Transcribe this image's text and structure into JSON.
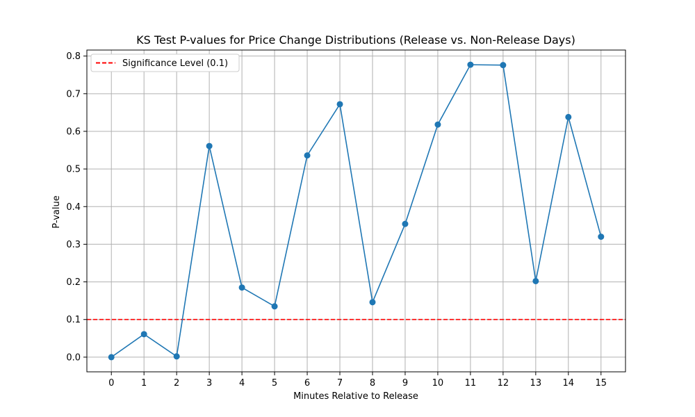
{
  "chart_data": {
    "type": "line",
    "title": "KS Test P-values for Price Change Distributions (Release vs. Non-Release Days)",
    "xlabel": "Minutes Relative to Release",
    "ylabel": "P-value",
    "x": [
      0,
      1,
      2,
      3,
      4,
      5,
      6,
      7,
      8,
      9,
      10,
      11,
      12,
      13,
      14,
      15
    ],
    "series": [
      {
        "values": [
          0.0,
          0.061,
          0.002,
          0.561,
          0.185,
          0.135,
          0.536,
          0.672,
          0.146,
          0.354,
          0.618,
          0.777,
          0.776,
          0.202,
          0.638,
          0.32
        ],
        "color": "#1f77b4",
        "marker": "circle"
      }
    ],
    "reference_line": {
      "y": 0.1,
      "label": "Significance Level (0.1)",
      "color": "#ff0000",
      "style": "dashed"
    },
    "xticks": [
      "0",
      "1",
      "2",
      "3",
      "4",
      "5",
      "6",
      "7",
      "8",
      "9",
      "10",
      "11",
      "12",
      "13",
      "14",
      "15"
    ],
    "yticks": [
      "0.0",
      "0.1",
      "0.2",
      "0.3",
      "0.4",
      "0.5",
      "0.6",
      "0.7",
      "0.8"
    ],
    "xlim": [
      -0.75,
      15.75
    ],
    "ylim": [
      -0.039,
      0.816
    ],
    "grid": true,
    "legend_position": "top-left"
  }
}
